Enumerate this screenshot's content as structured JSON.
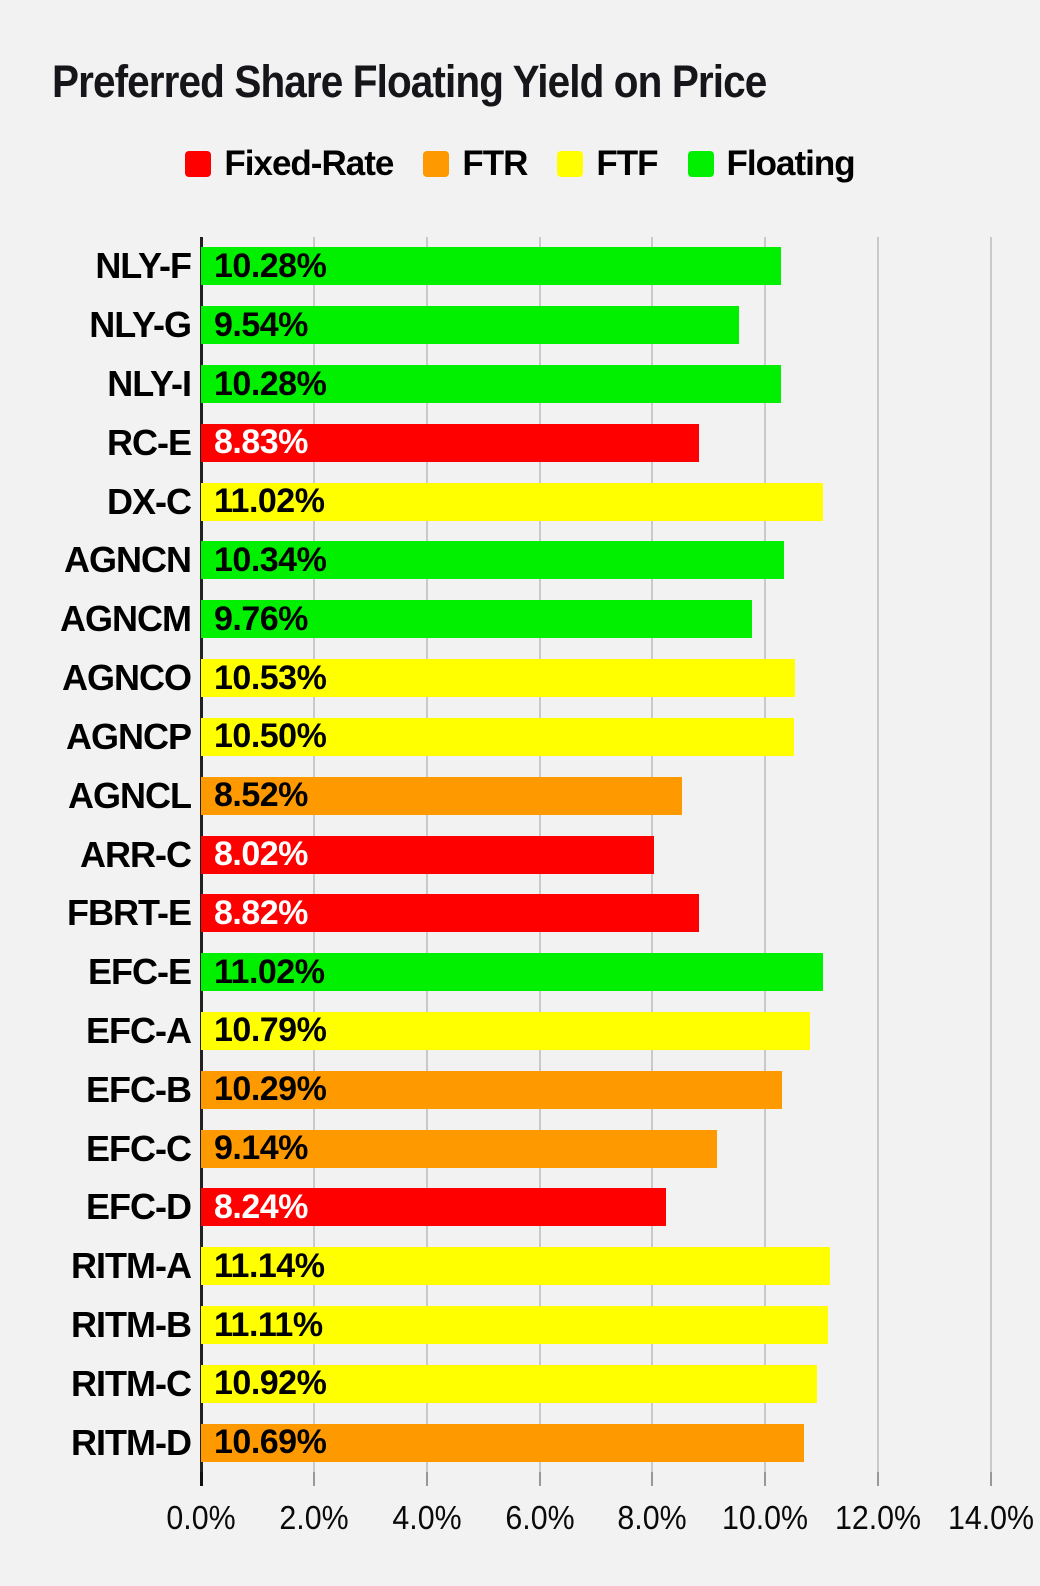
{
  "title": "Preferred Share Floating Yield on Price",
  "legend": [
    {
      "label": "Fixed-Rate",
      "color": "#ff0000"
    },
    {
      "label": "FTR",
      "color": "#ff9900"
    },
    {
      "label": "FTF",
      "color": "#ffff00"
    },
    {
      "label": "Floating",
      "color": "#00f000"
    }
  ],
  "colors": {
    "series": {
      "Fixed-Rate": "#ff0000",
      "FTR": "#ff9900",
      "FTF": "#ffff00",
      "Floating": "#00f000"
    },
    "value_text": {
      "Fixed-Rate": "#ffffff",
      "FTR": "#000000",
      "FTF": "#000000",
      "Floating": "#000000"
    },
    "background": "#f2f2f2",
    "gridline": "#c9c9c9",
    "axis": "#212121",
    "tick": "#989898",
    "text": "#000000"
  },
  "chart_data": {
    "type": "bar",
    "orientation": "horizontal",
    "title": "Preferred Share Floating Yield on Price",
    "xlabel": "",
    "ylabel": "",
    "categories": [
      "NLY-F",
      "NLY-G",
      "NLY-I",
      "RC-E",
      "DX-C",
      "AGNCN",
      "AGNCM",
      "AGNCO",
      "AGNCP",
      "AGNCL",
      "ARR-C",
      "FBRT-E",
      "EFC-E",
      "EFC-A",
      "EFC-B",
      "EFC-C",
      "EFC-D",
      "RITM-A",
      "RITM-B",
      "RITM-C",
      "RITM-D"
    ],
    "values": [
      10.28,
      9.54,
      10.28,
      8.83,
      11.02,
      10.34,
      9.76,
      10.53,
      10.5,
      8.52,
      8.02,
      8.82,
      11.02,
      10.79,
      10.29,
      9.14,
      8.24,
      11.14,
      11.11,
      10.92,
      10.69
    ],
    "value_labels": [
      "10.28%",
      "9.54%",
      "10.28%",
      "8.83%",
      "11.02%",
      "10.34%",
      "9.76%",
      "10.53%",
      "10.50%",
      "8.52%",
      "8.02%",
      "8.82%",
      "11.02%",
      "10.79%",
      "10.29%",
      "9.14%",
      "8.24%",
      "11.14%",
      "11.11%",
      "10.92%",
      "10.69%"
    ],
    "groups": [
      "Floating",
      "Floating",
      "Floating",
      "Fixed-Rate",
      "FTF",
      "Floating",
      "Floating",
      "FTF",
      "FTF",
      "FTR",
      "Fixed-Rate",
      "Fixed-Rate",
      "Floating",
      "FTF",
      "FTR",
      "FTR",
      "Fixed-Rate",
      "FTF",
      "FTF",
      "FTF",
      "FTR"
    ],
    "xlim": [
      0,
      14
    ],
    "x_tick_labels": [
      "0.0%",
      "2.0%",
      "4.0%",
      "6.0%",
      "8.0%",
      "10.0%",
      "12.0%",
      "14.0%"
    ],
    "grid": true,
    "legend_position": "top",
    "legend_entries": [
      "Fixed-Rate",
      "FTR",
      "FTF",
      "Floating"
    ]
  }
}
